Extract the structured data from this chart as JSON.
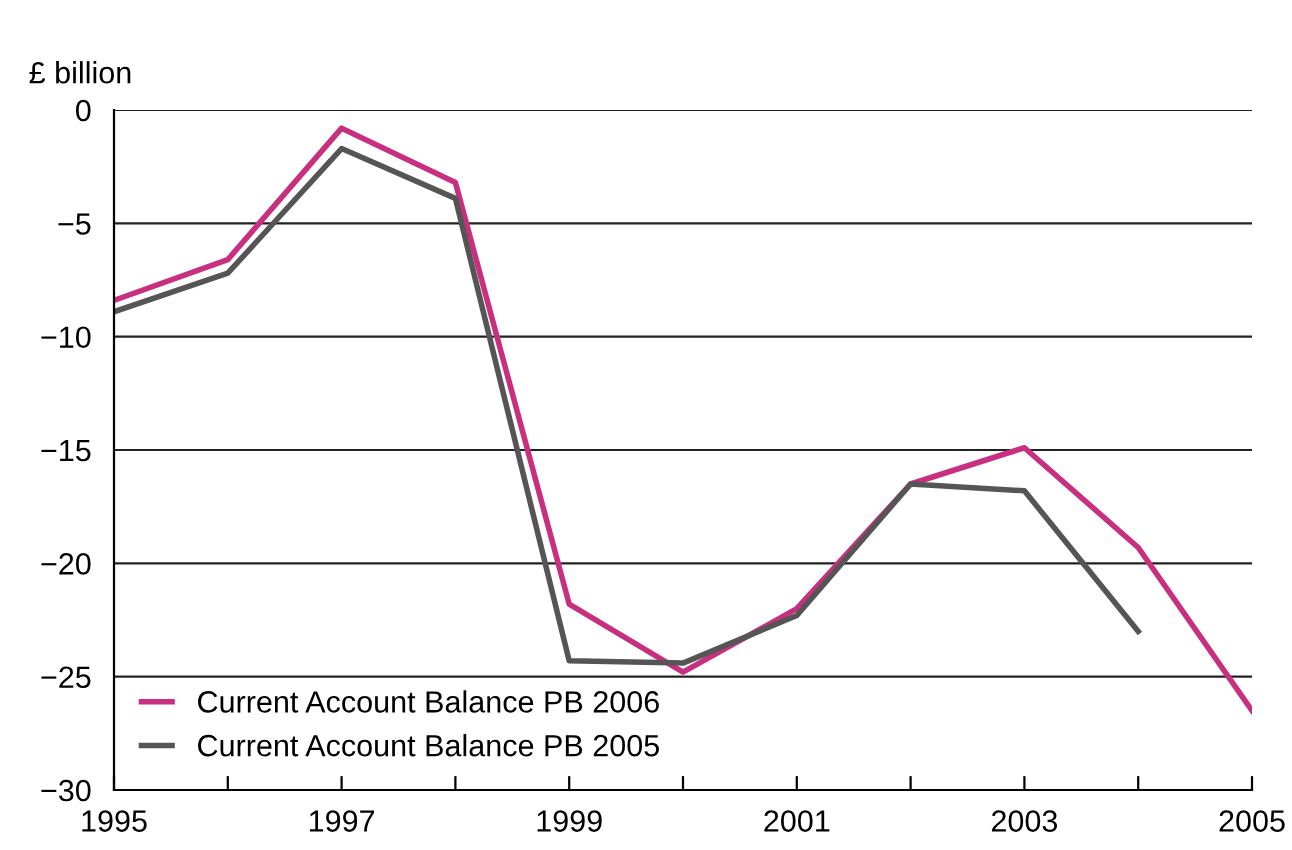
{
  "chart_data": {
    "type": "line",
    "ylabel": "£ billion",
    "x": [
      1995,
      1996,
      1997,
      1998,
      1999,
      2000,
      2001,
      2002,
      2003,
      2004,
      2005
    ],
    "series": [
      {
        "name": "Current Account Balance PB 2006",
        "color": "#c8307f",
        "values": [
          -8.4,
          -6.6,
          -0.8,
          -3.2,
          -21.8,
          -24.8,
          -22.0,
          -16.5,
          -14.9,
          -19.3,
          -26.5
        ]
      },
      {
        "name": "Current Account Balance PB 2005",
        "color": "#555555",
        "values": [
          -8.9,
          -7.2,
          -1.7,
          -3.9,
          -24.3,
          -24.4,
          -22.3,
          -16.5,
          -16.8,
          -23.0,
          null
        ]
      }
    ],
    "xlim": [
      1995,
      2005
    ],
    "xticks": [
      1995,
      {
        "value": 1996,
        "label": null
      },
      1997,
      {
        "value": 1998,
        "label": null
      },
      1999,
      {
        "value": 2000,
        "label": null
      },
      2001,
      {
        "value": 2002,
        "label": null
      },
      2003,
      {
        "value": 2004,
        "label": null
      },
      2005
    ],
    "ylim": [
      -30,
      0
    ],
    "yticks": [
      -30,
      -25,
      -20,
      -15,
      -10,
      -5,
      0
    ],
    "grid": "y",
    "legend": "bottom left",
    "marker": "none",
    "line_style": "solid"
  }
}
